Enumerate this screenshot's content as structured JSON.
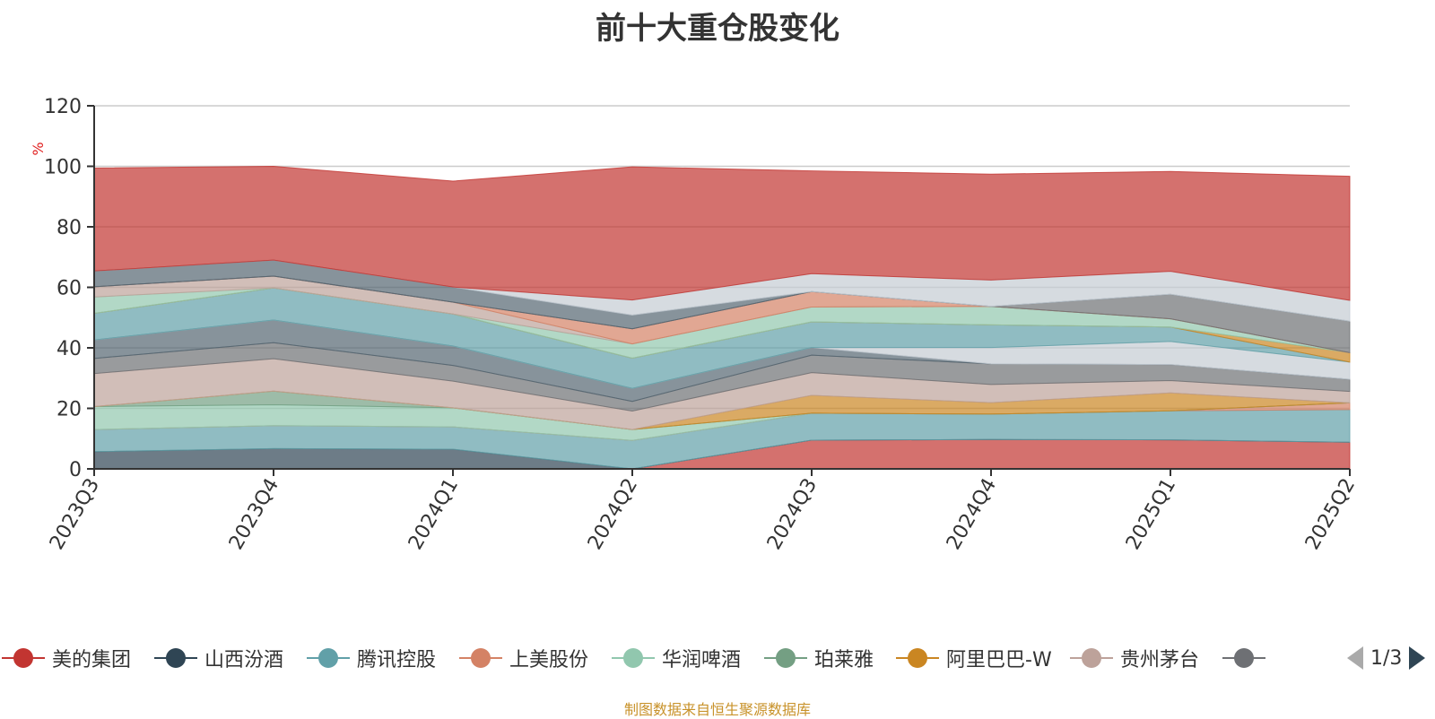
{
  "title": "前十大重仓股变化",
  "ylabel": "%",
  "source": "制图数据来自恒生聚源数据库",
  "pager": {
    "page": "1/3"
  },
  "legend": [
    {
      "name": "美的集团",
      "color": "#c23531"
    },
    {
      "name": "山西汾酒",
      "color": "#2f4554"
    },
    {
      "name": "腾讯控股",
      "color": "#61a0a8"
    },
    {
      "name": "上美股份",
      "color": "#d48265"
    },
    {
      "name": "华润啤酒",
      "color": "#91c7ae"
    },
    {
      "name": "珀莱雅",
      "color": "#749f83"
    },
    {
      "name": "阿里巴巴-W",
      "color": "#ca8622"
    },
    {
      "name": "贵州茅台",
      "color": "#bda29a"
    },
    {
      "name": "",
      "color": "#6e7074"
    }
  ],
  "chart_data": {
    "type": "area",
    "title": "前十大重仓股变化",
    "ylabel": "%",
    "ylim": [
      0,
      120
    ],
    "yticks": [
      0,
      20,
      40,
      60,
      80,
      100,
      120
    ],
    "grid": true,
    "legend_position": "bottom",
    "categories": [
      "2023Q3",
      "2023Q4",
      "2024Q1",
      "2024Q2",
      "2024Q3",
      "2024Q4",
      "2025Q1",
      "2025Q2"
    ],
    "series": [
      {
        "name": "美的集团",
        "color": "#c23531",
        "values": [
          0,
          0,
          0,
          0,
          9.5,
          9.7,
          9.6,
          8.8
        ]
      },
      {
        "name": "山西汾酒",
        "color": "#2f4554",
        "values": [
          5.7,
          6.7,
          6.5,
          0,
          0,
          0,
          0,
          0
        ]
      },
      {
        "name": "腾讯控股",
        "color": "#61a0a8",
        "values": [
          7.3,
          7.6,
          7.4,
          9.4,
          8.9,
          8.4,
          9.6,
          10.8
        ]
      },
      {
        "name": "上美股份",
        "color": "#d48265",
        "values": [
          0,
          0,
          0,
          0,
          0,
          0,
          0,
          2.2
        ]
      },
      {
        "name": "华润啤酒",
        "color": "#91c7ae",
        "values": [
          7.6,
          6.9,
          6.3,
          3.6,
          0,
          0,
          0,
          0
        ]
      },
      {
        "name": "珀莱雅",
        "color": "#749f83",
        "values": [
          0,
          4.5,
          0,
          0,
          0,
          0,
          0,
          0
        ]
      },
      {
        "name": "阿里巴巴-W",
        "color": "#ca8622",
        "values": [
          0,
          0,
          0,
          0,
          5.9,
          3.8,
          5.9,
          0
        ]
      },
      {
        "name": "贵州茅台",
        "color": "#bda29a",
        "values": [
          10.9,
          10.7,
          8.8,
          6.1,
          7.5,
          6,
          4.1,
          3.8
        ]
      },
      {
        "name": "",
        "color": "#6e7074",
        "values": [
          5,
          5.3,
          5.2,
          3.2,
          5.8,
          6.8,
          5.3,
          4
        ]
      },
      {
        "name": "",
        "color": "#546570",
        "values": [
          6.1,
          7.5,
          6.4,
          4.3,
          2.5,
          0,
          0,
          0
        ]
      },
      {
        "name": "",
        "color": "#c4ccd3",
        "values": [
          0,
          0,
          0,
          0,
          0,
          5.4,
          7.6,
          5.7
        ]
      },
      {
        "name": "",
        "color": "#61a0a8",
        "values": [
          8.8,
          10.6,
          10.6,
          10,
          8.5,
          7.5,
          4.8,
          0
        ]
      },
      {
        "name": "",
        "color": "#ca8622",
        "values": [
          0,
          0,
          0,
          0,
          0,
          0,
          0,
          3.1
        ]
      },
      {
        "name": "",
        "color": "#91c7ae",
        "values": [
          5.4,
          0,
          0,
          4.7,
          4.9,
          6.1,
          2.7,
          0
        ]
      },
      {
        "name": "",
        "color": "#bda29a",
        "values": [
          3.4,
          3.9,
          3.9,
          0,
          0,
          0,
          0,
          0
        ]
      },
      {
        "name": "",
        "color": "#d48265",
        "values": [
          0,
          0,
          0,
          5,
          5.1,
          0,
          0,
          0
        ]
      },
      {
        "name": "",
        "color": "#6e7074",
        "values": [
          0,
          0,
          0,
          0,
          0,
          0,
          8.1,
          10.4
        ]
      },
      {
        "name": "",
        "color": "#546570",
        "values": [
          5.2,
          5.3,
          5,
          4.5,
          0,
          0,
          0,
          0
        ]
      },
      {
        "name": "",
        "color": "#c4ccd3",
        "values": [
          0,
          0,
          0,
          5,
          5.9,
          8.7,
          7.6,
          6.9
        ]
      },
      {
        "name": "",
        "color": "#c23531",
        "values": [
          34,
          31,
          35,
          44,
          34,
          35,
          33,
          41
        ]
      }
    ]
  }
}
